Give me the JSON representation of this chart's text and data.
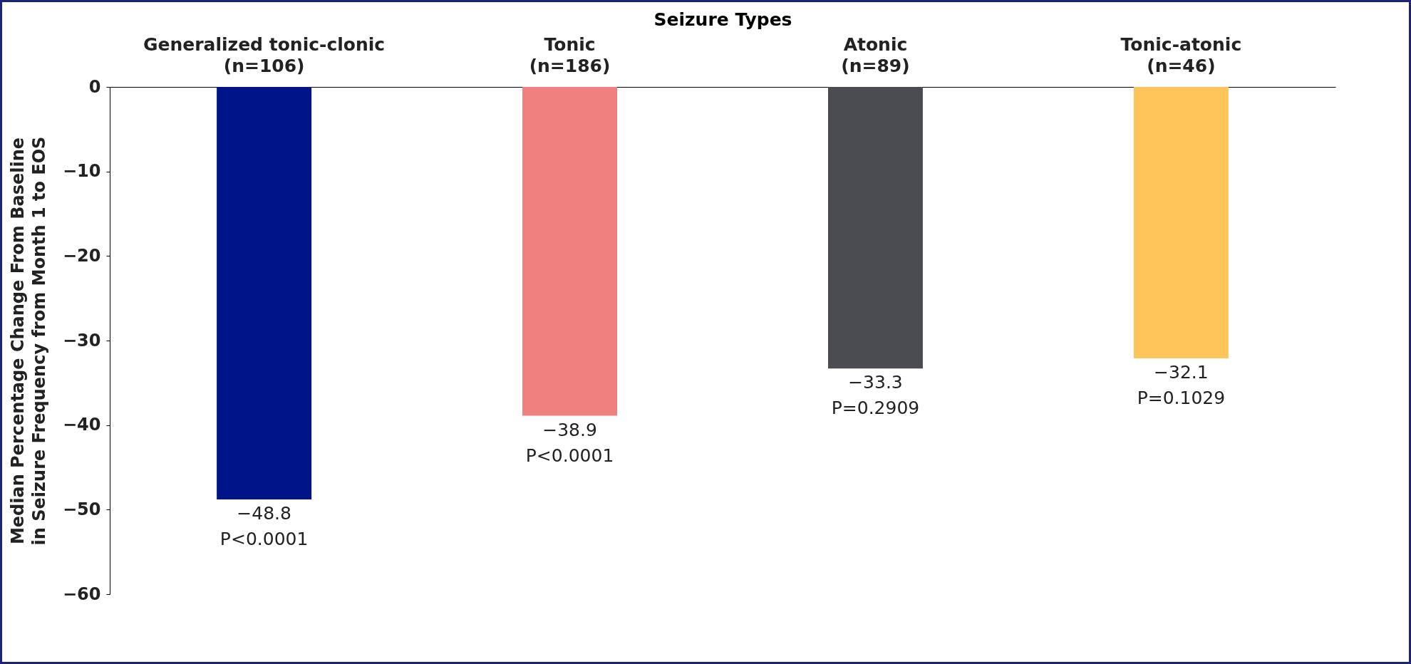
{
  "chart_data": {
    "type": "bar",
    "xlabel": "Seizure Types",
    "ylabel": "Median Percentage Change From Baseline\nin Seizure Frequency from Month 1 to EOS",
    "categories": [
      "Generalized tonic-clonic\n(n=106)",
      "Tonic\n(n=186)",
      "Atonic\n(n=89)",
      "Tonic-atonic\n(n=46)"
    ],
    "values": [
      -48.8,
      -38.9,
      -33.3,
      -32.1
    ],
    "colors": [
      "#001489",
      "#f08080",
      "#4a4c52",
      "#ffc55a"
    ],
    "value_labels": [
      "−48.8\nP<0.0001",
      "−38.9\nP<0.0001",
      "−33.3\nP=0.2909",
      "−32.1\nP=0.1029"
    ],
    "ylim": [
      -60,
      0
    ],
    "yticks": [
      0,
      -10,
      -20,
      -30,
      -40,
      -50,
      -60
    ],
    "grid": false,
    "legend": false
  }
}
